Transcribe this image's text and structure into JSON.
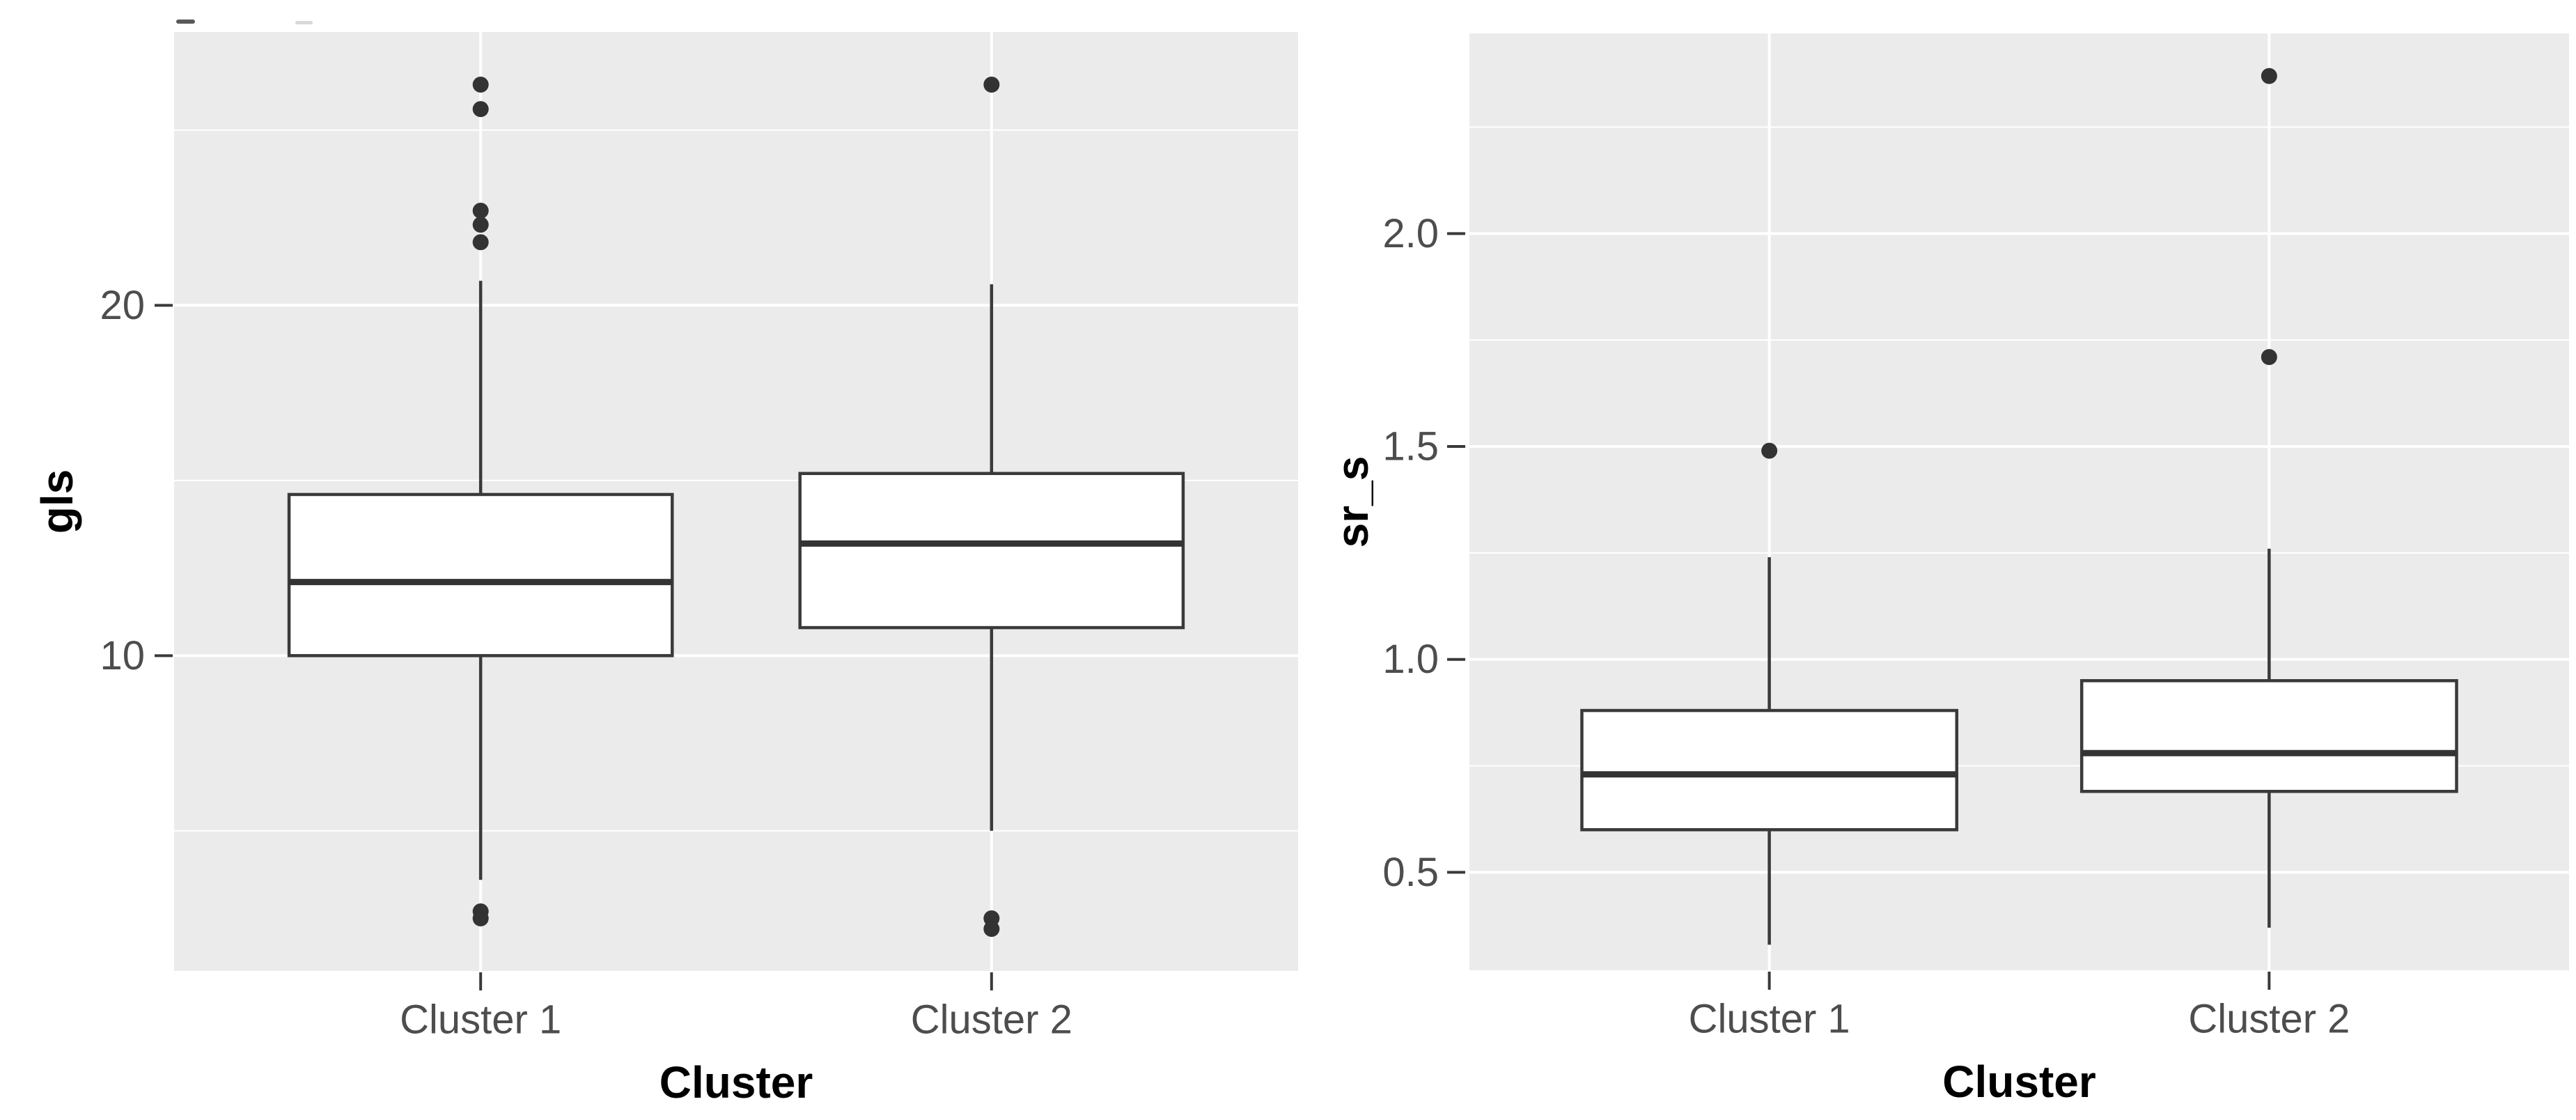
{
  "figure": {
    "background": "#FFFFFF",
    "panel_background": "#EBEBEB",
    "grid_color": "#FFFFFF",
    "box_fill": "#FFFFFF",
    "box_stroke": "#3A3A3A",
    "median_color": "#333333",
    "outlier_color": "#333333",
    "tick_text_color": "#4D4D4D",
    "axis_title_color": "#000000"
  },
  "chart_data": [
    {
      "type": "box",
      "title": "",
      "ylabel": "gls",
      "xlabel": "Cluster",
      "categories": [
        "Cluster 1",
        "Cluster 2"
      ],
      "y_ticks": [
        10,
        20
      ],
      "y_tick_labels": [
        "10",
        "20"
      ],
      "y_minor_ticks": [
        5,
        15,
        25
      ],
      "ylim": [
        1.0,
        27.8
      ],
      "grid": true,
      "legend": "none",
      "series": [
        {
          "name": "Cluster 1",
          "lower_whisker": 3.6,
          "q1": 10.0,
          "median": 12.1,
          "q3": 14.6,
          "upper_whisker": 20.7,
          "outliers": [
            26.3,
            25.6,
            22.7,
            22.3,
            21.8,
            2.7,
            2.5
          ]
        },
        {
          "name": "Cluster 2",
          "lower_whisker": 5.0,
          "q1": 10.8,
          "median": 13.2,
          "q3": 15.2,
          "upper_whisker": 20.6,
          "outliers": [
            26.3,
            2.5,
            2.2
          ]
        }
      ]
    },
    {
      "type": "box",
      "title": "",
      "ylabel": "sr_s",
      "xlabel": "Cluster",
      "categories": [
        "Cluster 1",
        "Cluster 2"
      ],
      "y_ticks": [
        0.5,
        1.0,
        1.5,
        2.0
      ],
      "y_tick_labels": [
        "0.5",
        "1.0",
        "1.5",
        "2.0"
      ],
      "y_minor_ticks": [
        0.75,
        1.25,
        1.75,
        2.25
      ],
      "ylim": [
        0.27,
        2.47
      ],
      "grid": true,
      "legend": "none",
      "series": [
        {
          "name": "Cluster 1",
          "lower_whisker": 0.33,
          "q1": 0.6,
          "median": 0.73,
          "q3": 0.88,
          "upper_whisker": 1.24,
          "outliers": [
            1.49
          ]
        },
        {
          "name": "Cluster 2",
          "lower_whisker": 0.37,
          "q1": 0.69,
          "median": 0.78,
          "q3": 0.95,
          "upper_whisker": 1.26,
          "outliers": [
            2.37,
            1.71
          ]
        }
      ]
    }
  ]
}
